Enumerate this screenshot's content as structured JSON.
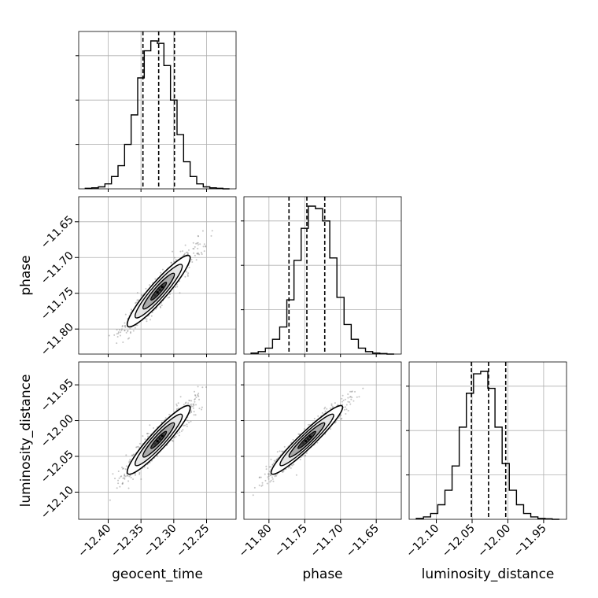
{
  "chart_data": {
    "type": "corner",
    "parameters": [
      "geocent_time",
      "phase",
      "luminosity_distance"
    ],
    "axes": {
      "geocent_time": {
        "range": [
          -12.445,
          -12.205
        ],
        "ticks": [
          -12.4,
          -12.35,
          -12.3,
          -12.25
        ],
        "tick_labels": [
          "−12.40",
          "−12.35",
          "−12.30",
          "−12.25"
        ]
      },
      "phase": {
        "range": [
          -11.835,
          -11.615
        ],
        "ticks": [
          -11.8,
          -11.75,
          -11.7,
          -11.65
        ],
        "tick_labels": [
          "−11.80",
          "−11.75",
          "−11.70",
          "−11.65"
        ]
      },
      "luminosity_distance": {
        "range": [
          -12.138,
          -11.918
        ],
        "ticks": [
          -12.1,
          -12.05,
          -12.0,
          -11.95
        ],
        "tick_labels": [
          "−12.10",
          "−12.05",
          "−12.00",
          "−11.95"
        ]
      }
    },
    "histograms": {
      "geocent_time": {
        "edges": [
          -12.435,
          -12.425,
          -12.415,
          -12.405,
          -12.395,
          -12.385,
          -12.375,
          -12.365,
          -12.355,
          -12.345,
          -12.335,
          -12.325,
          -12.315,
          -12.305,
          -12.295,
          -12.285,
          -12.275,
          -12.265,
          -12.255,
          -12.245,
          -12.235,
          -12.225,
          -12.215
        ],
        "counts": [
          1,
          2,
          4,
          10,
          25,
          47,
          90,
          150,
          225,
          280,
          300,
          295,
          250,
          180,
          110,
          55,
          25,
          10,
          4,
          2,
          1,
          0
        ],
        "quantiles": [
          -12.347,
          -12.323,
          -12.299
        ]
      },
      "phase": {
        "edges": [
          -11.825,
          -11.815,
          -11.805,
          -11.795,
          -11.785,
          -11.775,
          -11.765,
          -11.755,
          -11.745,
          -11.735,
          -11.725,
          -11.715,
          -11.705,
          -11.695,
          -11.685,
          -11.675,
          -11.665,
          -11.655,
          -11.645,
          -11.635,
          -11.625
        ],
        "counts": [
          2,
          5,
          12,
          30,
          55,
          110,
          190,
          255,
          300,
          295,
          270,
          195,
          115,
          60,
          30,
          12,
          5,
          2,
          1,
          0
        ],
        "quantiles": [
          -11.772,
          -11.747,
          -11.722
        ]
      },
      "luminosity_distance": {
        "edges": [
          -12.128,
          -12.118,
          -12.108,
          -12.098,
          -12.088,
          -12.078,
          -12.068,
          -12.058,
          -12.048,
          -12.038,
          -12.028,
          -12.018,
          -12.008,
          -11.998,
          -11.988,
          -11.978,
          -11.968,
          -11.958,
          -11.948,
          -11.938,
          -11.928
        ],
        "counts": [
          2,
          5,
          12,
          30,
          60,
          110,
          190,
          260,
          300,
          305,
          270,
          190,
          115,
          60,
          30,
          12,
          5,
          2,
          1,
          0
        ],
        "quantiles": [
          -12.051,
          -12.027,
          -12.003
        ]
      }
    },
    "pairs": [
      {
        "x": "geocent_time",
        "y": "phase",
        "mean": [
          -12.323,
          -11.747
        ],
        "sd": [
          0.024,
          0.025
        ],
        "rho": 0.93
      },
      {
        "x": "geocent_time",
        "y": "luminosity_distance",
        "mean": [
          -12.323,
          -12.027
        ],
        "sd": [
          0.024,
          0.024
        ],
        "rho": 0.93
      },
      {
        "x": "phase",
        "y": "luminosity_distance",
        "mean": [
          -11.747,
          -12.027
        ],
        "sd": [
          0.025,
          0.024
        ],
        "rho": 0.95
      }
    ],
    "contour_levels_sigma": [
      0.5,
      1.0,
      1.5,
      2.0
    ],
    "colors": {
      "hist": "#000000",
      "points": "#7f7f7f",
      "grid": "#b0b0b0",
      "density_max": "#000000"
    },
    "grid": true
  }
}
